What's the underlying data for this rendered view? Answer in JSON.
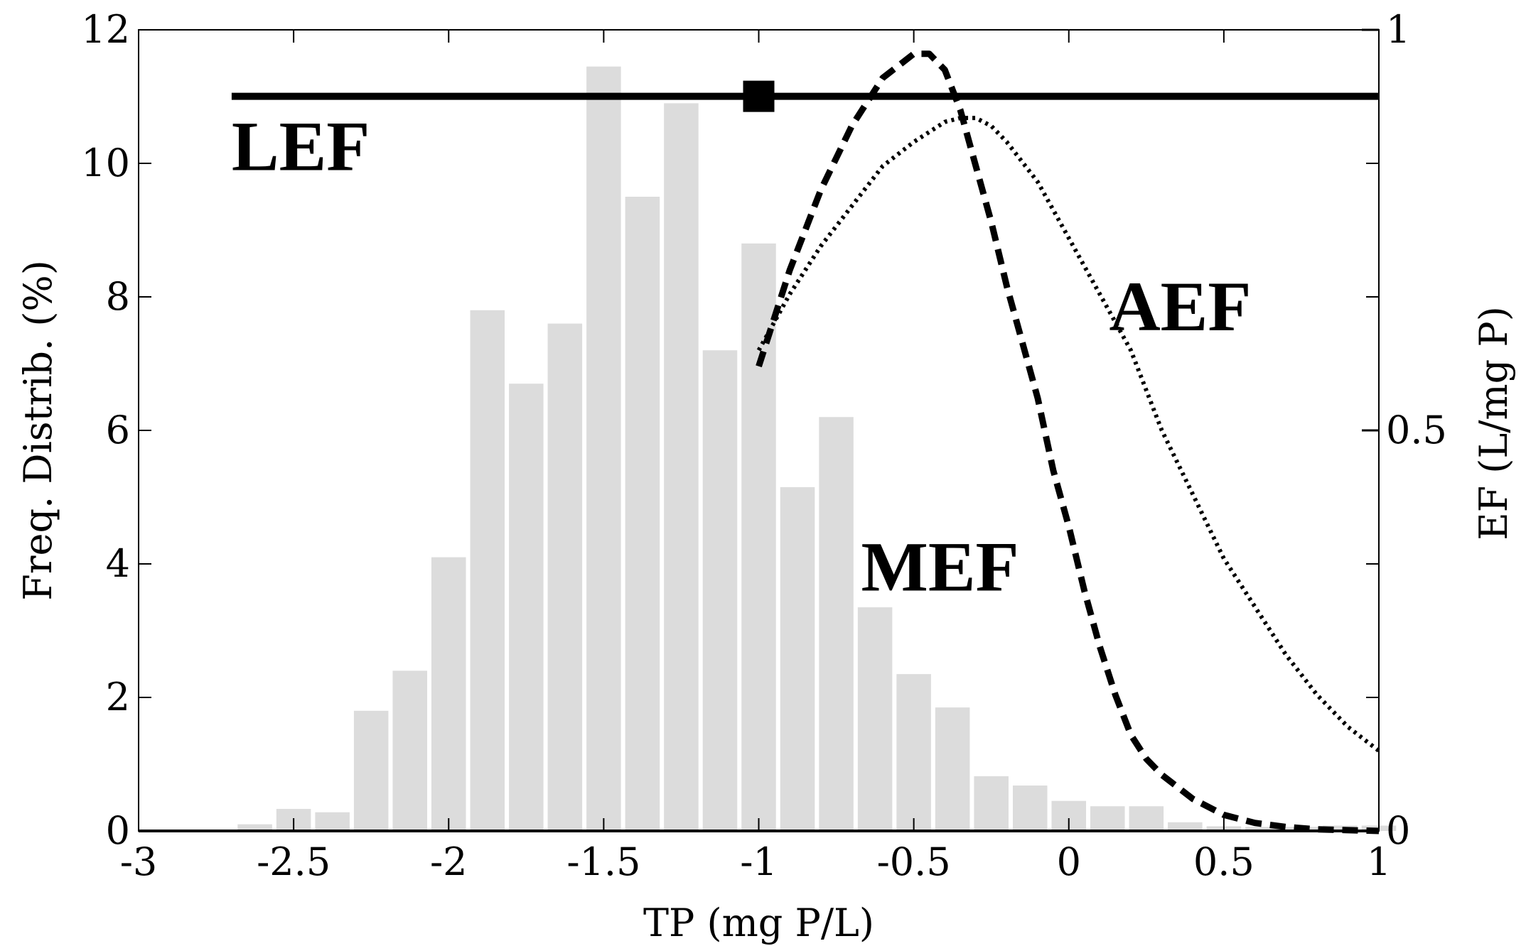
{
  "chart_data": {
    "type": "bar",
    "xlabel": "TP (mg P/L)",
    "ylabel_left": "Freq. Distrib. (%)",
    "ylabel_right": "EF (L/mg P)",
    "xlim": [
      -3,
      1
    ],
    "ylim_left": [
      0,
      12
    ],
    "ylim_right": [
      0,
      1
    ],
    "x_ticks": [
      -3,
      -2.5,
      -2,
      -1.5,
      -1,
      -0.5,
      0,
      0.5,
      1
    ],
    "x_tick_labels": [
      "-3",
      "-2.5",
      "-2",
      "-1.5",
      "-1",
      "-0.5",
      "0",
      "0.5",
      "1"
    ],
    "y_left_ticks": [
      0,
      2,
      4,
      6,
      8,
      10,
      12
    ],
    "y_left_tick_labels": [
      "0",
      "2",
      "4",
      "6",
      "8",
      "10",
      "12"
    ],
    "y_right_ticks": [
      0,
      0.5,
      1
    ],
    "y_right_tick_labels": [
      "0",
      "0.5",
      "1"
    ],
    "grid": false,
    "histogram": {
      "color": "#dcdcdc",
      "bin_width": 0.125,
      "x": [
        -2.625,
        -2.5,
        -2.375,
        -2.25,
        -2.125,
        -2.0,
        -1.875,
        -1.75,
        -1.625,
        -1.5,
        -1.375,
        -1.25,
        -1.125,
        -1.0,
        -0.875,
        -0.75,
        -0.625,
        -0.5,
        -0.375,
        -0.25,
        -0.125,
        0.0,
        0.125,
        0.25,
        0.375,
        0.5,
        0.625,
        0.75,
        0.875,
        1.0
      ],
      "values": [
        0.1,
        0.33,
        0.28,
        1.8,
        2.4,
        4.1,
        7.8,
        6.7,
        7.6,
        11.45,
        9.5,
        10.9,
        7.2,
        8.8,
        5.15,
        6.2,
        3.35,
        2.35,
        1.85,
        0.82,
        0.68,
        0.45,
        0.37,
        0.37,
        0.13,
        0.07,
        0.06,
        0.06,
        0.08,
        0.08
      ]
    },
    "series": [
      {
        "name": "LEF",
        "style": "solid",
        "axis": "right",
        "x": [
          -2.7,
          1.0
        ],
        "y": [
          0.917,
          0.917
        ]
      },
      {
        "name": "MEF",
        "style": "dashed",
        "axis": "right",
        "x": [
          -1.0,
          -0.9,
          -0.8,
          -0.7,
          -0.6,
          -0.5,
          -0.45,
          -0.4,
          -0.35,
          -0.3,
          -0.25,
          -0.2,
          -0.15,
          -0.1,
          -0.05,
          0.0,
          0.05,
          0.1,
          0.15,
          0.2,
          0.25,
          0.3,
          0.4,
          0.5,
          0.6,
          0.7,
          0.8,
          0.9,
          1.0
        ],
        "y": [
          0.58,
          0.7,
          0.8,
          0.88,
          0.94,
          0.97,
          0.97,
          0.95,
          0.9,
          0.83,
          0.76,
          0.68,
          0.61,
          0.54,
          0.45,
          0.38,
          0.3,
          0.23,
          0.17,
          0.12,
          0.09,
          0.07,
          0.04,
          0.02,
          0.01,
          0.005,
          0.002,
          0.001,
          0.0
        ]
      },
      {
        "name": "AEF",
        "style": "dotted",
        "axis": "right",
        "x": [
          -1.0,
          -0.9,
          -0.8,
          -0.7,
          -0.6,
          -0.5,
          -0.4,
          -0.35,
          -0.3,
          -0.25,
          -0.2,
          -0.1,
          0.0,
          0.1,
          0.2,
          0.3,
          0.4,
          0.5,
          0.6,
          0.7,
          0.8,
          0.9,
          1.0
        ],
        "y": [
          0.6,
          0.67,
          0.73,
          0.78,
          0.83,
          0.86,
          0.885,
          0.89,
          0.89,
          0.88,
          0.86,
          0.81,
          0.74,
          0.67,
          0.6,
          0.5,
          0.42,
          0.34,
          0.28,
          0.22,
          0.17,
          0.13,
          0.1
        ]
      }
    ],
    "markers": [
      {
        "x": -1.0,
        "y": 0.917,
        "axis": "right",
        "shape": "square",
        "color": "#000000"
      }
    ],
    "annotations": [
      {
        "text": "LEF",
        "x": -2.7,
        "y_left": 9.9
      },
      {
        "text": "MEF",
        "x": -0.67,
        "y_left": 3.6
      },
      {
        "text": "AEF",
        "x": 0.13,
        "y_left": 7.5
      }
    ]
  }
}
